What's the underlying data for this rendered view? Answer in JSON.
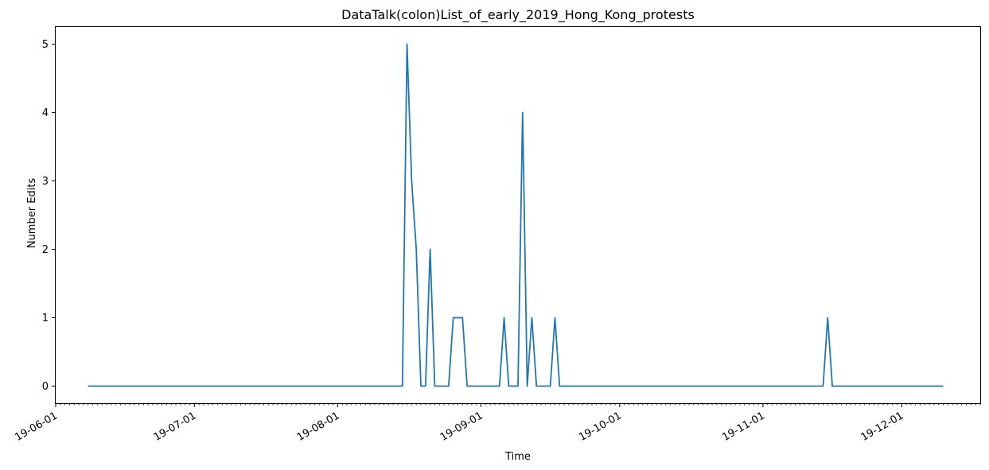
{
  "chart_data": {
    "type": "line",
    "title": "DataTalk(colon)List_of_early_2019_Hong_Kong_protests",
    "xlabel": "Time",
    "ylabel": "Number Edits",
    "xlim": [
      "2019-06-01",
      "2019-12-18"
    ],
    "ylim": [
      -0.25,
      5.25
    ],
    "yticks": [
      0,
      1,
      2,
      3,
      4,
      5
    ],
    "xticks": [
      {
        "date": "2019-06-01",
        "label": "19-06-01"
      },
      {
        "date": "2019-07-01",
        "label": "19-07-01"
      },
      {
        "date": "2019-08-01",
        "label": "19-08-01"
      },
      {
        "date": "2019-09-01",
        "label": "19-09-01"
      },
      {
        "date": "2019-10-01",
        "label": "19-10-01"
      },
      {
        "date": "2019-11-01",
        "label": "19-11-01"
      },
      {
        "date": "2019-12-01",
        "label": "19-12-01"
      }
    ],
    "grid": false,
    "series_color": "#1f77b4",
    "series": [
      {
        "points": [
          [
            "2019-06-08",
            0
          ],
          [
            "2019-08-15",
            0
          ],
          [
            "2019-08-16",
            5
          ],
          [
            "2019-08-17",
            3
          ],
          [
            "2019-08-18",
            2
          ],
          [
            "2019-08-19",
            0
          ],
          [
            "2019-08-20",
            0
          ],
          [
            "2019-08-21",
            2
          ],
          [
            "2019-08-22",
            0
          ],
          [
            "2019-08-25",
            0
          ],
          [
            "2019-08-26",
            1
          ],
          [
            "2019-08-28",
            1
          ],
          [
            "2019-08-29",
            0
          ],
          [
            "2019-09-05",
            0
          ],
          [
            "2019-09-06",
            1
          ],
          [
            "2019-09-07",
            0
          ],
          [
            "2019-09-09",
            0
          ],
          [
            "2019-09-10",
            4
          ],
          [
            "2019-09-11",
            0
          ],
          [
            "2019-09-12",
            1
          ],
          [
            "2019-09-13",
            0
          ],
          [
            "2019-09-16",
            0
          ],
          [
            "2019-09-17",
            1
          ],
          [
            "2019-09-18",
            0
          ],
          [
            "2019-11-14",
            0
          ],
          [
            "2019-11-15",
            1
          ],
          [
            "2019-11-16",
            0
          ],
          [
            "2019-12-10",
            0
          ]
        ]
      }
    ]
  }
}
